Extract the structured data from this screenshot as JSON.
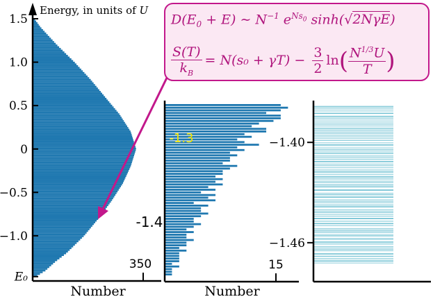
{
  "chart_data": [
    {
      "type": "bar",
      "orientation": "horizontal",
      "panel": "full spectrum",
      "ylabel": "Energy, in units of U",
      "xlabel": "Number",
      "y_ticks": [
        "1.5",
        "1.0",
        "0.5",
        "0",
        "−0.5",
        "−1.0",
        "E₀"
      ],
      "y_tick_values": [
        1.5,
        1.0,
        0.5,
        0,
        -0.5,
        -1.0,
        -1.47
      ],
      "x_tick_label": "350",
      "x_tick_value": 350,
      "ylim": [
        -1.52,
        1.62
      ],
      "xlim": [
        0,
        400
      ],
      "inner_labels": [
        "-1.4"
      ],
      "profile": {
        "energy": [
          -1.47,
          -1.4,
          -1.3,
          -1.2,
          -1.0,
          -0.8,
          -0.6,
          -0.4,
          -0.2,
          0,
          0.2,
          0.4,
          0.6,
          0.8,
          1.0,
          1.2,
          1.4,
          1.5
        ],
        "count": [
          10,
          40,
          70,
          105,
          160,
          205,
          245,
          280,
          305,
          322,
          305,
          270,
          225,
          180,
          130,
          75,
          25,
          5
        ]
      }
    },
    {
      "type": "bar",
      "orientation": "horizontal",
      "panel": "zoom on lowest states",
      "xlabel": "Number",
      "x_tick_label": "15",
      "x_tick_value": 15,
      "inner_labels": [
        "-1.3"
      ],
      "y_range": [
        -1.478,
        -1.298
      ],
      "xlim": [
        0,
        18.5
      ],
      "counts_top_to_bottom": [
        16,
        17,
        16,
        14,
        16,
        16,
        15,
        13,
        12,
        14,
        14,
        11,
        12,
        10,
        11,
        13,
        10,
        11,
        9,
        10,
        9,
        9,
        8,
        10,
        9,
        8,
        8,
        7,
        8,
        7,
        8,
        6,
        7,
        5,
        7,
        6,
        7,
        4,
        6,
        5,
        5,
        6,
        5,
        4,
        4,
        5,
        4,
        3,
        4,
        3,
        3,
        4,
        3,
        3,
        2,
        3,
        2,
        2,
        2,
        2,
        1,
        2,
        1,
        1,
        1
      ]
    },
    {
      "type": "bar",
      "orientation": "horizontal",
      "panel": "individual levels",
      "y_ticks": [
        "−1.40",
        "−1.46"
      ],
      "y_tick_values": [
        -1.4,
        -1.46
      ],
      "y_range": [
        -1.4725,
        -1.3775
      ]
    }
  ],
  "formula": {
    "line1": "D(E₀ + E) ∼ N⁻¹ e^{N s₀} sinh(√(2NγE))",
    "line1_lhs": "D(E",
    "line1_mid1": " + E) ∼ N",
    "line1_mid2": " e",
    "line1_mid3": " sinh(",
    "line1_rad": "2NγE",
    "line1_end": ")",
    "line2_lhs_num": "S(T)",
    "line2_lhs_den": "k",
    "line2_mid": "= N(s₀ + γT) −",
    "line2_frac_num": "3",
    "line2_frac_den": "2",
    "line2_ln": "ln",
    "line2_arg_num": "U",
    "line2_arg_den": "T"
  },
  "colors": {
    "bar": "#1f78b0",
    "level_line": "#6fc0d2",
    "formula": "#b0157d",
    "formula_border": "#c2188b",
    "formula_bg": "#fbe8f3",
    "arrow": "#c2188b",
    "highlight_label": "#f2e600"
  }
}
